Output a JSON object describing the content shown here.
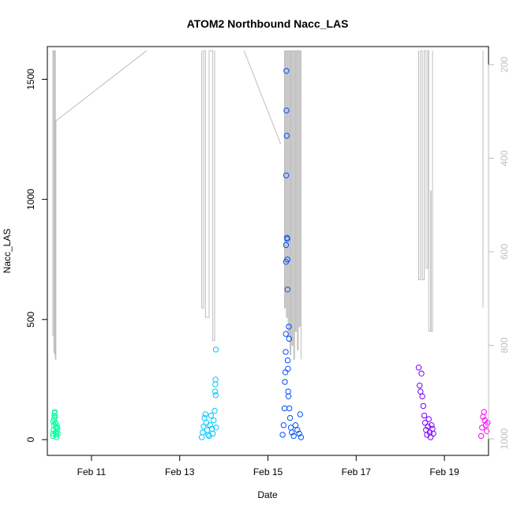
{
  "chart_data": {
    "type": "scatter",
    "title": "ATOM2 Northbound Nacc_LAS",
    "xlabel": "Date",
    "ylabel": "Nacc_LAS",
    "x_ticks": [
      {
        "date": "2023-02-11",
        "label": "Feb 11"
      },
      {
        "date": "2023-02-13",
        "label": "Feb 13"
      },
      {
        "date": "2023-02-15",
        "label": "Feb 15"
      },
      {
        "date": "2023-02-17",
        "label": "Feb 17"
      },
      {
        "date": "2023-02-19",
        "label": "Feb 19"
      }
    ],
    "xlim": [
      "2023-02-10T00:00",
      "2023-02-20T00:00"
    ],
    "ylim": [
      0,
      1600
    ],
    "y_ticks": [
      0,
      500,
      1000,
      1500
    ],
    "y2_ticks": [
      200,
      400,
      600,
      800,
      1000
    ],
    "y2lim": [
      1010,
      170
    ],
    "grid": false,
    "series": [
      {
        "color": "#00ffa0",
        "points": [
          [
            "2023-02-10T03:00",
            15
          ],
          [
            "2023-02-10T03:10",
            25
          ],
          [
            "2023-02-10T03:20",
            40
          ],
          [
            "2023-02-10T03:30",
            60
          ],
          [
            "2023-02-10T03:40",
            85
          ],
          [
            "2023-02-10T03:50",
            100
          ],
          [
            "2023-02-10T04:00",
            110
          ],
          [
            "2023-02-10T04:10",
            95
          ],
          [
            "2023-02-10T04:20",
            70
          ],
          [
            "2023-02-10T04:30",
            50
          ],
          [
            "2023-02-10T04:40",
            30
          ],
          [
            "2023-02-10T04:50",
            20
          ],
          [
            "2023-02-10T05:00",
            10
          ],
          [
            "2023-02-10T05:10",
            35
          ],
          [
            "2023-02-10T05:20",
            55
          ],
          [
            "2023-02-10T05:30",
            45
          ],
          [
            "2023-02-10T05:40",
            25
          ],
          [
            "2023-02-10T03:15",
            75
          ],
          [
            "2023-02-10T04:05",
            115
          ],
          [
            "2023-02-10T04:35",
            65
          ]
        ]
      },
      {
        "color": "#00c8ff",
        "points": [
          [
            "2023-02-13T12:00",
            10
          ],
          [
            "2023-02-13T12:30",
            30
          ],
          [
            "2023-02-13T13:00",
            55
          ],
          [
            "2023-02-13T13:30",
            90
          ],
          [
            "2023-02-13T14:00",
            105
          ],
          [
            "2023-02-13T14:30",
            70
          ],
          [
            "2023-02-13T15:00",
            40
          ],
          [
            "2023-02-13T15:30",
            20
          ],
          [
            "2023-02-13T16:00",
            15
          ],
          [
            "2023-02-13T16:30",
            60
          ],
          [
            "2023-02-13T17:00",
            100
          ],
          [
            "2023-02-13T17:30",
            45
          ],
          [
            "2023-02-13T18:00",
            25
          ],
          [
            "2023-02-13T18:30",
            80
          ],
          [
            "2023-02-13T19:00",
            120
          ],
          [
            "2023-02-13T19:15",
            200
          ],
          [
            "2023-02-13T19:25",
            230
          ],
          [
            "2023-02-13T19:30",
            250
          ],
          [
            "2023-02-13T19:35",
            185
          ],
          [
            "2023-02-13T19:40",
            375
          ],
          [
            "2023-02-13T19:45",
            50
          ]
        ]
      },
      {
        "color": "#0050ff",
        "points": [
          [
            "2023-02-15T08:00",
            20
          ],
          [
            "2023-02-15T08:30",
            60
          ],
          [
            "2023-02-15T09:00",
            130
          ],
          [
            "2023-02-15T09:15",
            240
          ],
          [
            "2023-02-15T09:30",
            280
          ],
          [
            "2023-02-15T09:40",
            365
          ],
          [
            "2023-02-15T09:45",
            440
          ],
          [
            "2023-02-15T09:50",
            740
          ],
          [
            "2023-02-15T09:52",
            810
          ],
          [
            "2023-02-15T09:55",
            1100
          ],
          [
            "2023-02-15T10:00",
            1535
          ],
          [
            "2023-02-15T10:05",
            1370
          ],
          [
            "2023-02-15T10:15",
            1265
          ],
          [
            "2023-02-15T10:20",
            840
          ],
          [
            "2023-02-15T10:30",
            835
          ],
          [
            "2023-02-15T10:35",
            750
          ],
          [
            "2023-02-15T10:40",
            625
          ],
          [
            "2023-02-15T10:45",
            330
          ],
          [
            "2023-02-15T10:55",
            295
          ],
          [
            "2023-02-15T11:00",
            200
          ],
          [
            "2023-02-15T11:10",
            180
          ],
          [
            "2023-02-15T11:20",
            470
          ],
          [
            "2023-02-15T11:30",
            420
          ],
          [
            "2023-02-15T11:40",
            130
          ],
          [
            "2023-02-15T12:00",
            90
          ],
          [
            "2023-02-15T12:30",
            50
          ],
          [
            "2023-02-15T13:00",
            30
          ],
          [
            "2023-02-15T14:00",
            15
          ],
          [
            "2023-02-15T15:00",
            60
          ],
          [
            "2023-02-15T16:00",
            40
          ],
          [
            "2023-02-15T17:00",
            25
          ],
          [
            "2023-02-15T17:30",
            105
          ],
          [
            "2023-02-15T18:00",
            10
          ]
        ]
      },
      {
        "color": "#7800ff",
        "points": [
          [
            "2023-02-18T10:00",
            300
          ],
          [
            "2023-02-18T10:30",
            225
          ],
          [
            "2023-02-18T11:00",
            200
          ],
          [
            "2023-02-18T11:30",
            275
          ],
          [
            "2023-02-18T12:00",
            180
          ],
          [
            "2023-02-18T12:30",
            140
          ],
          [
            "2023-02-18T13:00",
            100
          ],
          [
            "2023-02-18T13:30",
            70
          ],
          [
            "2023-02-18T14:00",
            40
          ],
          [
            "2023-02-18T14:30",
            20
          ],
          [
            "2023-02-18T15:00",
            55
          ],
          [
            "2023-02-18T15:30",
            85
          ],
          [
            "2023-02-18T16:00",
            30
          ],
          [
            "2023-02-18T16:30",
            10
          ],
          [
            "2023-02-18T17:00",
            60
          ],
          [
            "2023-02-18T17:30",
            45
          ],
          [
            "2023-02-18T18:00",
            25
          ]
        ]
      },
      {
        "color": "#ff00ff",
        "points": [
          [
            "2023-02-19T20:00",
            15
          ],
          [
            "2023-02-19T20:30",
            50
          ],
          [
            "2023-02-19T21:00",
            95
          ],
          [
            "2023-02-19T21:30",
            115
          ],
          [
            "2023-02-19T22:00",
            80
          ],
          [
            "2023-02-19T22:30",
            60
          ],
          [
            "2023-02-19T23:00",
            35
          ],
          [
            "2023-02-19T23:30",
            70
          ]
        ]
      }
    ],
    "overlay": {
      "color": "#bebebe",
      "axis": "right",
      "segments": [
        [
          [
            "2023-02-10T03:00",
            780
          ],
          [
            "2023-02-10T03:00",
            170
          ],
          [
            "2023-02-10T03:30",
            170
          ],
          [
            "2023-02-10T03:30",
            810
          ],
          [
            "2023-02-10T04:00",
            820
          ],
          [
            "2023-02-10T04:00",
            170
          ],
          [
            "2023-02-10T04:20",
            170
          ],
          [
            "2023-02-10T04:20",
            830
          ],
          [
            "2023-02-10T04:40",
            830
          ],
          [
            "2023-02-10T04:40",
            320
          ]
        ],
        [
          [
            "2023-02-10T04:40",
            320
          ],
          [
            "2023-02-12T06:00",
            170
          ]
        ],
        [
          [
            "2023-02-14T11:00",
            170
          ],
          [
            "2023-02-15T07:00",
            370
          ]
        ],
        [
          [
            "2023-02-13T12:00",
            170
          ],
          [
            "2023-02-13T12:00",
            720
          ],
          [
            "2023-02-13T13:00",
            720
          ],
          [
            "2023-02-13T13:00",
            170
          ],
          [
            "2023-02-13T14:00",
            170
          ],
          [
            "2023-02-13T14:00",
            740
          ],
          [
            "2023-02-13T16:00",
            740
          ],
          [
            "2023-02-13T16:00",
            170
          ],
          [
            "2023-02-13T18:00",
            170
          ],
          [
            "2023-02-13T18:00",
            790
          ],
          [
            "2023-02-13T19:00",
            790
          ],
          [
            "2023-02-13T19:00",
            170
          ]
        ],
        [
          [
            "2023-02-15T09:00",
            170
          ],
          [
            "2023-02-15T09:00",
            720
          ],
          [
            "2023-02-15T09:30",
            720
          ],
          [
            "2023-02-15T09:30",
            170
          ],
          [
            "2023-02-15T10:00",
            170
          ],
          [
            "2023-02-15T10:00",
            740
          ],
          [
            "2023-02-15T10:30",
            740
          ],
          [
            "2023-02-15T10:30",
            170
          ],
          [
            "2023-02-15T11:00",
            170
          ],
          [
            "2023-02-15T11:00",
            780
          ],
          [
            "2023-02-15T11:30",
            780
          ],
          [
            "2023-02-15T11:30",
            170
          ],
          [
            "2023-02-15T12:00",
            170
          ],
          [
            "2023-02-15T12:00",
            820
          ],
          [
            "2023-02-15T12:30",
            820
          ],
          [
            "2023-02-15T12:30",
            170
          ],
          [
            "2023-02-15T13:00",
            170
          ],
          [
            "2023-02-15T13:00",
            800
          ],
          [
            "2023-02-15T13:30",
            800
          ],
          [
            "2023-02-15T13:30",
            170
          ],
          [
            "2023-02-15T14:00",
            170
          ],
          [
            "2023-02-15T14:00",
            830
          ],
          [
            "2023-02-15T14:30",
            830
          ],
          [
            "2023-02-15T14:30",
            170
          ],
          [
            "2023-02-15T15:00",
            170
          ],
          [
            "2023-02-15T15:00",
            770
          ],
          [
            "2023-02-15T15:30",
            770
          ],
          [
            "2023-02-15T15:30",
            170
          ],
          [
            "2023-02-15T16:00",
            170
          ],
          [
            "2023-02-15T16:00",
            810
          ],
          [
            "2023-02-15T16:30",
            810
          ],
          [
            "2023-02-15T16:30",
            170
          ],
          [
            "2023-02-15T17:00",
            170
          ],
          [
            "2023-02-15T17:00",
            760
          ],
          [
            "2023-02-15T17:30",
            760
          ],
          [
            "2023-02-15T17:30",
            170
          ],
          [
            "2023-02-15T18:00",
            170
          ],
          [
            "2023-02-15T18:00",
            830
          ]
        ],
        [
          [
            "2023-02-18T10:00",
            170
          ],
          [
            "2023-02-18T10:00",
            660
          ],
          [
            "2023-02-18T11:00",
            660
          ],
          [
            "2023-02-18T11:00",
            170
          ],
          [
            "2023-02-18T12:00",
            170
          ],
          [
            "2023-02-18T12:00",
            660
          ],
          [
            "2023-02-18T13:00",
            660
          ],
          [
            "2023-02-18T13:00",
            170
          ],
          [
            "2023-02-18T14:00",
            170
          ],
          [
            "2023-02-18T14:00",
            635
          ],
          [
            "2023-02-18T15:00",
            635
          ],
          [
            "2023-02-18T15:00",
            170
          ],
          [
            "2023-02-18T15:30",
            170
          ],
          [
            "2023-02-18T15:30",
            770
          ],
          [
            "2023-02-18T16:30",
            770
          ],
          [
            "2023-02-18T16:30",
            470
          ],
          [
            "2023-02-18T16:45",
            470
          ],
          [
            "2023-02-18T16:45",
            770
          ],
          [
            "2023-02-18T17:30",
            770
          ],
          [
            "2023-02-18T17:30",
            170
          ]
        ],
        [
          [
            "2023-02-19T21:00",
            170
          ],
          [
            "2023-02-19T21:00",
            720
          ]
        ]
      ]
    }
  }
}
